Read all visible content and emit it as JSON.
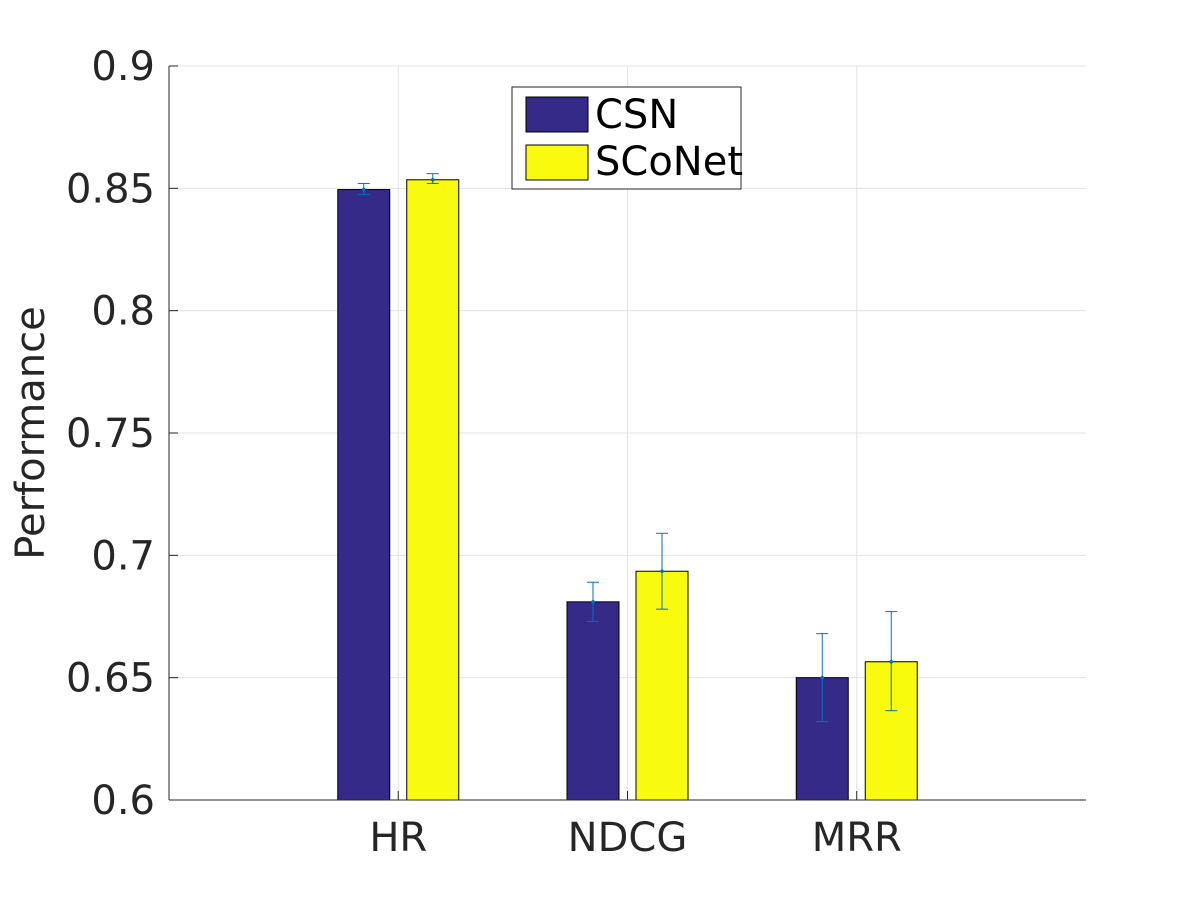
{
  "chart_data": {
    "type": "bar",
    "title": "",
    "xlabel": "",
    "ylabel": "Performance",
    "ylim": [
      0.6,
      0.9
    ],
    "yticks": [
      "0.6",
      "0.65",
      "0.7",
      "0.75",
      "0.8",
      "0.85",
      "0.9"
    ],
    "categories": [
      "HR",
      "NDCG",
      "MRR"
    ],
    "grid": true,
    "legend_position": "top-center",
    "series": [
      {
        "name": "CSN",
        "color": "#352a87",
        "values": [
          0.8495,
          0.681,
          0.65
        ],
        "error_low": [
          0.8475,
          0.673,
          0.632
        ],
        "error_high": [
          0.852,
          0.689,
          0.668
        ]
      },
      {
        "name": "SCoNet",
        "color": "#f9fb0e",
        "values": [
          0.8535,
          0.6935,
          0.6565
        ],
        "error_low": [
          0.852,
          0.678,
          0.6365
        ],
        "error_high": [
          0.856,
          0.709,
          0.677
        ]
      }
    ],
    "errorbar_color": "#0072bd"
  }
}
